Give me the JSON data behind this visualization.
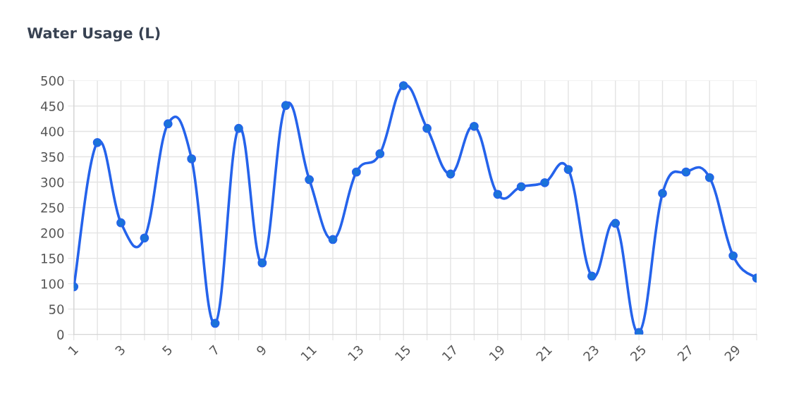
{
  "chart_data": {
    "type": "line",
    "title": "Water Usage (L)",
    "categories": [
      "1",
      null,
      "3",
      null,
      "5",
      null,
      "7",
      null,
      "9",
      null,
      "11",
      null,
      "13",
      null,
      "15",
      null,
      "17",
      null,
      "19",
      null,
      "21",
      null,
      "23",
      null,
      "25",
      null,
      "27",
      null,
      "29",
      null
    ],
    "series": [
      {
        "color": "#2563eb",
        "values": [
          94,
          378,
          220,
          190,
          415,
          346,
          22,
          406,
          141,
          451,
          305,
          187,
          320,
          356,
          490,
          406,
          316,
          410,
          276,
          291,
          299,
          325,
          115,
          219,
          4,
          278,
          320,
          309,
          155,
          111
        ]
      }
    ],
    "ylim": [
      0,
      500
    ],
    "yticks": [
      0,
      50,
      100,
      150,
      200,
      250,
      300,
      350,
      400,
      450,
      500
    ],
    "grid": true,
    "legend": false,
    "marker": "circle",
    "line_style": "solid"
  }
}
